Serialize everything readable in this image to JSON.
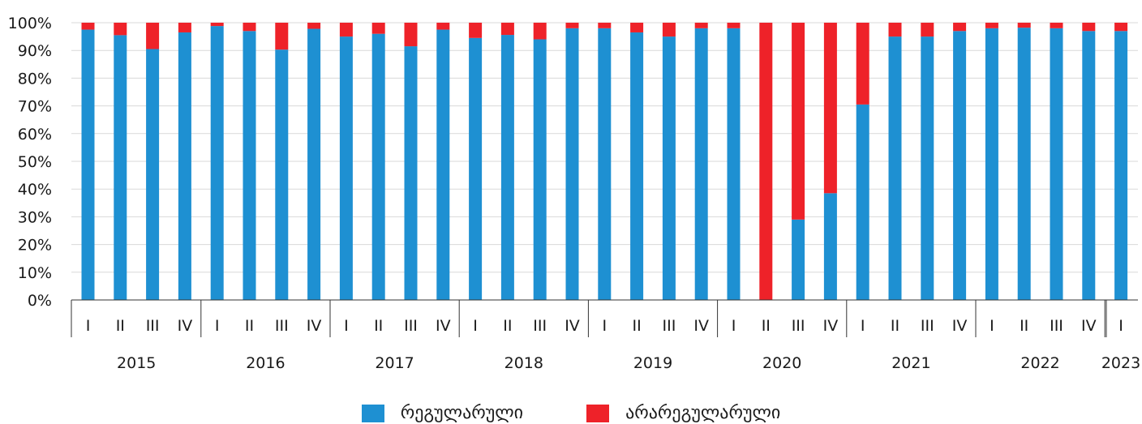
{
  "chart_data": {
    "type": "bar",
    "stacked": true,
    "percent": true,
    "ylim": [
      0,
      100
    ],
    "yticks": [
      "0%",
      "10%",
      "20%",
      "30%",
      "40%",
      "50%",
      "60%",
      "70%",
      "80%",
      "90%",
      "100%"
    ],
    "years": [
      {
        "label": "2015",
        "quarters": 4
      },
      {
        "label": "2016",
        "quarters": 4
      },
      {
        "label": "2017",
        "quarters": 4
      },
      {
        "label": "2018",
        "quarters": 4
      },
      {
        "label": "2019",
        "quarters": 4
      },
      {
        "label": "2020",
        "quarters": 4
      },
      {
        "label": "2021",
        "quarters": 4
      },
      {
        "label": "2022",
        "quarters": 4
      },
      {
        "label": "2023",
        "quarters": 1
      }
    ],
    "categories": [
      "I",
      "II",
      "III",
      "IV",
      "I",
      "II",
      "III",
      "IV",
      "I",
      "II",
      "III",
      "IV",
      "I",
      "II",
      "III",
      "IV",
      "I",
      "II",
      "III",
      "IV",
      "I",
      "II",
      "III",
      "IV",
      "I",
      "II",
      "III",
      "IV",
      "I",
      "II",
      "III",
      "IV",
      "I"
    ],
    "series": [
      {
        "name": "რეგულარული",
        "color": "#1e90d2",
        "values": [
          97.5,
          95.5,
          90.5,
          96.5,
          98.8,
          97,
          90.3,
          97.8,
          95,
          96,
          91.5,
          97.5,
          94.5,
          95.6,
          94,
          98,
          98,
          96.5,
          95,
          98,
          98,
          0,
          29,
          38.5,
          70.5,
          95,
          95,
          97,
          98,
          98.2,
          98,
          97,
          97
        ]
      },
      {
        "name": "არარეგულარული",
        "color": "#ee2229",
        "values": [
          2.5,
          4.5,
          9.5,
          3.5,
          1.2,
          3,
          9.7,
          2.2,
          5,
          4,
          8.5,
          2.5,
          5.5,
          4.4,
          6,
          2,
          2,
          3.5,
          5,
          2,
          2,
          100,
          71,
          61.5,
          29.5,
          5,
          5,
          3,
          2,
          1.8,
          2,
          3,
          3
        ]
      }
    ],
    "legend_position": "bottom-center",
    "grid": true
  }
}
